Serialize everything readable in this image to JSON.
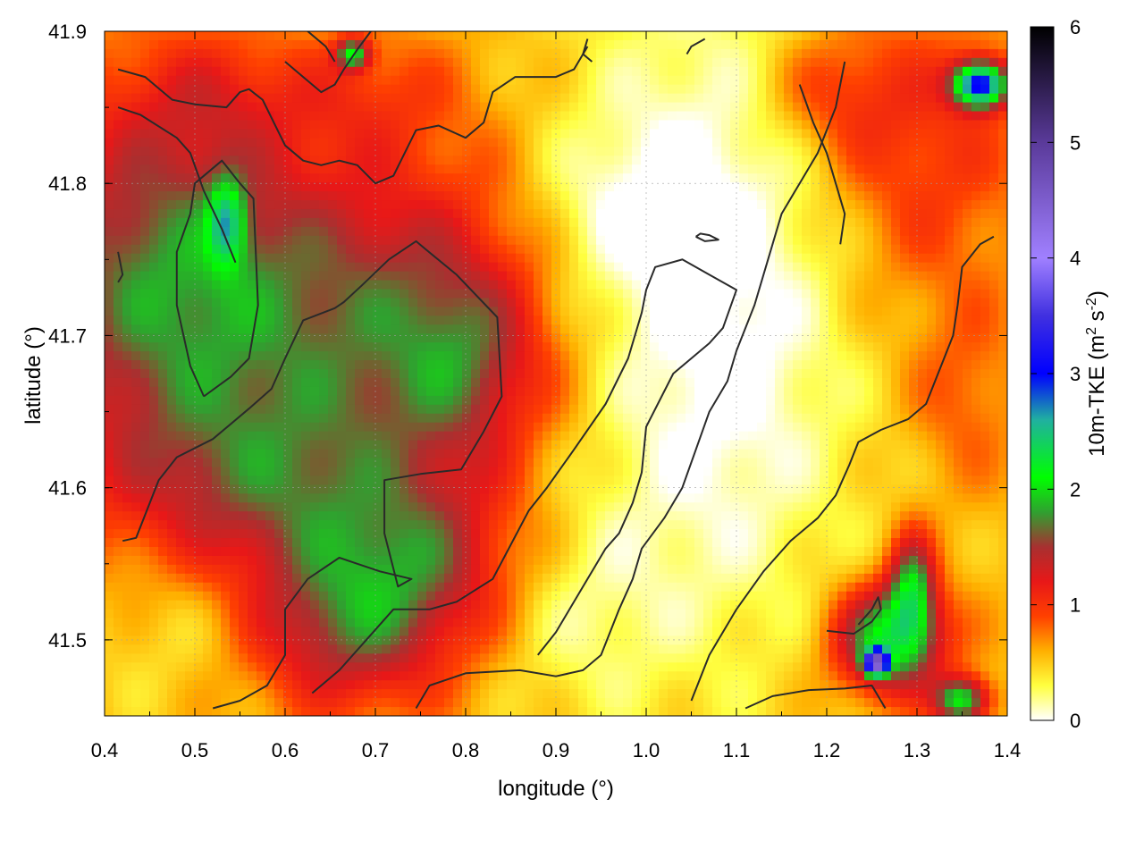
{
  "chart_data": {
    "type": "heatmap",
    "xlabel": "longitude (°)",
    "ylabel": "latitude (°)",
    "xlim": [
      0.4,
      1.4
    ],
    "ylim": [
      41.45,
      41.9
    ],
    "xticks": [
      "0.4",
      "0.5",
      "0.6",
      "0.7",
      "0.8",
      "0.9",
      "1.0",
      "1.1",
      "1.2",
      "1.3",
      "1.4"
    ],
    "yticks": [
      "41.5",
      "41.6",
      "41.7",
      "41.8",
      "41.9"
    ],
    "xtick_values": [
      0.4,
      0.5,
      0.6,
      0.7,
      0.8,
      0.9,
      1.0,
      1.1,
      1.2,
      1.3,
      1.4
    ],
    "ytick_values": [
      41.5,
      41.6,
      41.7,
      41.8,
      41.9
    ],
    "grid": true,
    "colorbar": {
      "label": "10m-TKE (m² s⁻²)",
      "label_parts": {
        "main": "10m-TKE (m",
        "sup1": "2",
        "mid": " s",
        "sup2": "-2",
        "end": ")"
      },
      "range": [
        0,
        6
      ],
      "ticks": [
        "0",
        "1",
        "2",
        "3",
        "4",
        "5",
        "6"
      ],
      "tick_values": [
        0,
        1,
        2,
        3,
        4,
        5,
        6
      ],
      "stops": [
        {
          "value": 0.0,
          "color": "#ffffff"
        },
        {
          "value": 0.3,
          "color": "#ffff40"
        },
        {
          "value": 0.6,
          "color": "#ffb000"
        },
        {
          "value": 0.9,
          "color": "#ff4000"
        },
        {
          "value": 1.2,
          "color": "#e81818"
        },
        {
          "value": 1.5,
          "color": "#a83030"
        },
        {
          "value": 1.8,
          "color": "#30a030"
        },
        {
          "value": 2.1,
          "color": "#00ff00"
        },
        {
          "value": 2.6,
          "color": "#20b0a0"
        },
        {
          "value": 3.0,
          "color": "#0000ff"
        },
        {
          "value": 3.5,
          "color": "#4030e0"
        },
        {
          "value": 4.0,
          "color": "#a080ff"
        },
        {
          "value": 5.0,
          "color": "#5a3a9a"
        },
        {
          "value": 6.0,
          "color": "#000000"
        }
      ]
    },
    "field_features": [
      {
        "type": "blob",
        "lon": 0.46,
        "lat": 41.74,
        "rlon": 0.16,
        "rlat": 0.12,
        "value": 1.1
      },
      {
        "type": "blob",
        "lon": 0.72,
        "lat": 41.72,
        "rlon": 0.2,
        "rlat": 0.1,
        "value": 0.9
      },
      {
        "type": "blob",
        "lon": 0.8,
        "lat": 41.68,
        "rlon": 0.08,
        "rlat": 0.06,
        "value": 0.5
      },
      {
        "type": "blob",
        "lon": 0.6,
        "lat": 41.59,
        "rlon": 0.2,
        "rlat": 0.08,
        "value": 0.9
      },
      {
        "type": "blob",
        "lon": 0.75,
        "lat": 41.55,
        "rlon": 0.12,
        "rlat": 0.05,
        "value": 0.6
      },
      {
        "type": "blob",
        "lon": 0.67,
        "lat": 41.5,
        "rlon": 0.12,
        "rlat": 0.05,
        "value": 0.8
      },
      {
        "type": "blob",
        "lon": 0.5,
        "lat": 41.52,
        "rlon": 0.12,
        "rlat": 0.06,
        "value": -0.4
      },
      {
        "type": "blob",
        "lon": 0.52,
        "lat": 41.86,
        "rlon": 0.1,
        "rlat": 0.04,
        "value": 0.3
      },
      {
        "type": "blob",
        "lon": 0.7,
        "lat": 41.86,
        "rlon": 0.1,
        "rlat": 0.04,
        "value": 0.3
      },
      {
        "type": "blob",
        "lon": 1.07,
        "lat": 41.72,
        "rlon": 0.16,
        "rlat": 0.22,
        "value": -0.7
      },
      {
        "type": "blob",
        "lon": 0.92,
        "lat": 41.52,
        "rlon": 0.1,
        "rlat": 0.07,
        "value": -0.3
      },
      {
        "type": "blob",
        "lon": 0.95,
        "lat": 41.78,
        "rlon": 0.1,
        "rlat": 0.06,
        "value": -0.3
      },
      {
        "type": "blob",
        "lon": 1.3,
        "lat": 41.82,
        "rlon": 0.12,
        "rlat": 0.1,
        "value": 0.5
      },
      {
        "type": "blob",
        "lon": 1.35,
        "lat": 41.66,
        "rlon": 0.06,
        "rlat": 0.06,
        "value": 0.3
      },
      {
        "type": "blob",
        "lon": 0.535,
        "lat": 41.775,
        "rlon": 0.02,
        "rlat": 0.028,
        "value": 1.0
      },
      {
        "type": "blob",
        "lon": 0.675,
        "lat": 41.885,
        "rlon": 0.018,
        "rlat": 0.01,
        "value": 1.3
      },
      {
        "type": "blob",
        "lon": 1.27,
        "lat": 41.5,
        "rlon": 0.06,
        "rlat": 0.035,
        "value": 1.6
      },
      {
        "type": "blob",
        "lon": 1.295,
        "lat": 41.535,
        "rlon": 0.025,
        "rlat": 0.035,
        "value": 1.2
      },
      {
        "type": "blob",
        "lon": 1.255,
        "lat": 41.485,
        "rlon": 0.012,
        "rlat": 0.008,
        "value": 3.2
      },
      {
        "type": "blob",
        "lon": 1.37,
        "lat": 41.865,
        "rlon": 0.03,
        "rlat": 0.015,
        "value": 2.4
      },
      {
        "type": "blob",
        "lon": 1.35,
        "lat": 41.46,
        "rlon": 0.03,
        "rlat": 0.015,
        "value": 1.5
      },
      {
        "type": "blob",
        "lon": 1.2,
        "lat": 41.86,
        "rlon": 0.08,
        "rlat": 0.04,
        "value": 0.4
      }
    ],
    "contours": [
      [
        [
          0.42,
          41.565
        ],
        [
          0.435,
          41.567
        ],
        [
          0.46,
          41.605
        ],
        [
          0.48,
          41.62
        ],
        [
          0.52,
          41.632
        ],
        [
          0.56,
          41.652
        ],
        [
          0.585,
          41.665
        ],
        [
          0.6,
          41.685
        ],
        [
          0.62,
          41.71
        ],
        [
          0.655,
          41.718
        ],
        [
          0.665,
          41.722
        ],
        [
          0.685,
          41.733
        ],
        [
          0.715,
          41.75
        ],
        [
          0.745,
          41.762
        ],
        [
          0.755,
          41.757
        ],
        [
          0.79,
          41.74
        ],
        [
          0.835,
          41.712
        ],
        [
          0.84,
          41.66
        ],
        [
          0.82,
          41.637
        ],
        [
          0.795,
          41.612
        ],
        [
          0.75,
          41.609
        ],
        [
          0.71,
          41.605
        ],
        [
          0.71,
          41.57
        ],
        [
          0.725,
          41.535
        ],
        [
          0.74,
          41.54
        ],
        [
          0.705,
          41.545
        ],
        [
          0.68,
          41.55
        ],
        [
          0.66,
          41.554
        ],
        [
          0.625,
          41.54
        ],
        [
          0.6,
          41.52
        ],
        [
          0.6,
          41.49
        ],
        [
          0.58,
          41.47
        ],
        [
          0.55,
          41.46
        ],
        [
          0.52,
          41.455
        ]
      ],
      [
        [
          0.51,
          41.66
        ],
        [
          0.495,
          41.68
        ],
        [
          0.48,
          41.72
        ],
        [
          0.48,
          41.755
        ],
        [
          0.495,
          41.78
        ],
        [
          0.5,
          41.8
        ],
        [
          0.53,
          41.815
        ],
        [
          0.55,
          41.8
        ],
        [
          0.565,
          41.79
        ],
        [
          0.57,
          41.72
        ],
        [
          0.56,
          41.685
        ],
        [
          0.54,
          41.673
        ],
        [
          0.51,
          41.66
        ]
      ],
      [
        [
          0.415,
          41.85
        ],
        [
          0.44,
          41.845
        ],
        [
          0.48,
          41.83
        ],
        [
          0.495,
          41.82
        ],
        [
          0.51,
          41.795
        ],
        [
          0.53,
          41.77
        ],
        [
          0.545,
          41.748
        ]
      ],
      [
        [
          0.415,
          41.875
        ],
        [
          0.445,
          41.87
        ],
        [
          0.475,
          41.855
        ],
        [
          0.5,
          41.852
        ],
        [
          0.535,
          41.85
        ],
        [
          0.55,
          41.86
        ],
        [
          0.56,
          41.862
        ],
        [
          0.575,
          41.855
        ],
        [
          0.6,
          41.825
        ],
        [
          0.62,
          41.815
        ],
        [
          0.64,
          41.812
        ],
        [
          0.66,
          41.815
        ],
        [
          0.68,
          41.812
        ],
        [
          0.7,
          41.8
        ],
        [
          0.72,
          41.805
        ],
        [
          0.745,
          41.835
        ],
        [
          0.77,
          41.838
        ],
        [
          0.8,
          41.83
        ],
        [
          0.82,
          41.84
        ],
        [
          0.83,
          41.86
        ],
        [
          0.855,
          41.87
        ],
        [
          0.885,
          41.87
        ],
        [
          0.9,
          41.87
        ],
        [
          0.92,
          41.875
        ],
        [
          0.935,
          41.89
        ]
      ],
      [
        [
          0.63,
          41.465
        ],
        [
          0.66,
          41.48
        ],
        [
          0.69,
          41.5
        ],
        [
          0.72,
          41.52
        ],
        [
          0.76,
          41.52
        ],
        [
          0.79,
          41.525
        ],
        [
          0.83,
          41.54
        ],
        [
          0.87,
          41.585
        ],
        [
          0.89,
          41.6
        ],
        [
          0.92,
          41.625
        ],
        [
          0.955,
          41.655
        ],
        [
          0.98,
          41.685
        ],
        [
          0.995,
          41.715
        ],
        [
          1.0,
          41.73
        ],
        [
          1.01,
          41.745
        ],
        [
          1.04,
          41.75
        ],
        [
          1.07,
          41.74
        ],
        [
          1.1,
          41.73
        ],
        [
          1.085,
          41.705
        ],
        [
          1.07,
          41.695
        ],
        [
          1.06,
          41.69
        ],
        [
          1.05,
          41.685
        ],
        [
          1.03,
          41.675
        ],
        [
          1.0,
          41.64
        ],
        [
          0.995,
          41.61
        ],
        [
          0.985,
          41.59
        ],
        [
          0.97,
          41.57
        ],
        [
          0.955,
          41.56
        ],
        [
          0.935,
          41.54
        ],
        [
          0.915,
          41.52
        ],
        [
          0.9,
          41.505
        ],
        [
          0.88,
          41.49
        ]
      ],
      [
        [
          0.745,
          41.455
        ],
        [
          0.76,
          41.47
        ],
        [
          0.8,
          41.478
        ],
        [
          0.86,
          41.48
        ],
        [
          0.9,
          41.476
        ],
        [
          0.93,
          41.48
        ],
        [
          0.95,
          41.49
        ],
        [
          0.97,
          41.52
        ],
        [
          0.985,
          41.54
        ],
        [
          0.995,
          41.56
        ],
        [
          1.02,
          41.58
        ],
        [
          1.04,
          41.6
        ],
        [
          1.055,
          41.625
        ],
        [
          1.07,
          41.65
        ],
        [
          1.09,
          41.67
        ],
        [
          1.1,
          41.69
        ],
        [
          1.12,
          41.72
        ],
        [
          1.14,
          41.76
        ],
        [
          1.15,
          41.78
        ],
        [
          1.17,
          41.8
        ],
        [
          1.19,
          41.82
        ],
        [
          1.21,
          41.85
        ],
        [
          1.22,
          41.88
        ]
      ],
      [
        [
          0.6,
          41.88
        ],
        [
          0.62,
          41.87
        ],
        [
          0.64,
          41.86
        ],
        [
          0.655,
          41.865
        ],
        [
          0.665,
          41.875
        ],
        [
          0.68,
          41.888
        ],
        [
          0.695,
          41.9
        ]
      ],
      [
        [
          0.625,
          41.9
        ],
        [
          0.645,
          41.89
        ],
        [
          0.655,
          41.88
        ]
      ],
      [
        [
          1.05,
          41.46
        ],
        [
          1.07,
          41.49
        ],
        [
          1.1,
          41.52
        ],
        [
          1.13,
          41.545
        ],
        [
          1.16,
          41.565
        ],
        [
          1.19,
          41.58
        ],
        [
          1.21,
          41.595
        ],
        [
          1.225,
          41.615
        ],
        [
          1.235,
          41.63
        ],
        [
          1.26,
          41.638
        ],
        [
          1.29,
          41.645
        ],
        [
          1.31,
          41.655
        ],
        [
          1.32,
          41.67
        ],
        [
          1.33,
          41.685
        ],
        [
          1.34,
          41.7
        ],
        [
          1.345,
          41.72
        ],
        [
          1.35,
          41.745
        ],
        [
          1.37,
          41.76
        ],
        [
          1.385,
          41.765
        ]
      ],
      [
        [
          1.11,
          41.455
        ],
        [
          1.14,
          41.463
        ],
        [
          1.18,
          41.467
        ],
        [
          1.22,
          41.468
        ],
        [
          1.25,
          41.47
        ],
        [
          1.265,
          41.455
        ]
      ],
      [
        [
          1.2,
          41.506
        ],
        [
          1.23,
          41.504
        ],
        [
          1.25,
          41.512
        ],
        [
          1.26,
          41.52
        ],
        [
          1.257,
          41.528
        ],
        [
          1.25,
          41.52
        ],
        [
          1.235,
          41.51
        ]
      ],
      [
        [
          1.055,
          41.765
        ],
        [
          1.065,
          41.762
        ],
        [
          1.08,
          41.763
        ],
        [
          1.07,
          41.766
        ],
        [
          1.06,
          41.767
        ],
        [
          1.055,
          41.765
        ]
      ],
      [
        [
          0.415,
          41.755
        ],
        [
          0.42,
          41.74
        ],
        [
          0.415,
          41.735
        ]
      ],
      [
        [
          0.935,
          41.895
        ],
        [
          0.93,
          41.885
        ],
        [
          0.94,
          41.88
        ]
      ],
      [
        [
          1.045,
          41.885
        ],
        [
          1.05,
          41.89
        ],
        [
          1.065,
          41.895
        ]
      ],
      [
        [
          1.17,
          41.865
        ],
        [
          1.185,
          41.84
        ],
        [
          1.2,
          41.82
        ],
        [
          1.21,
          41.8
        ],
        [
          1.22,
          41.78
        ],
        [
          1.215,
          41.76
        ]
      ]
    ]
  }
}
